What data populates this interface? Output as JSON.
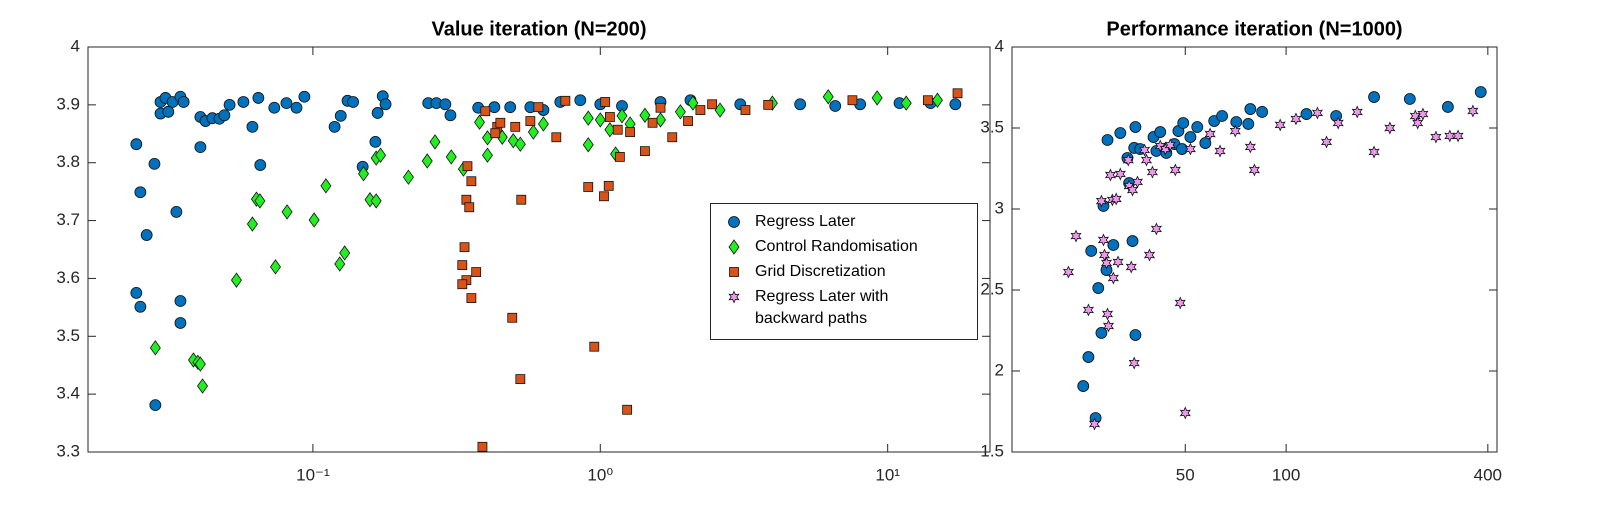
{
  "chart_data": [
    {
      "type": "scatter",
      "title": "Value iteration (N=200)",
      "log_x": true,
      "grid": false,
      "legend": "east",
      "xlim": [
        0.0165,
        22.7
      ],
      "xticks": [
        {
          "value": 0.1,
          "label": "10⁻¹"
        },
        {
          "value": 1,
          "label": "10⁰"
        },
        {
          "value": 10,
          "label": "10¹"
        }
      ],
      "ylim": [
        3.3,
        4
      ],
      "yticks": [
        3.3,
        3.4,
        3.5,
        3.6,
        3.7,
        3.8,
        3.9,
        4
      ],
      "series": [
        {
          "name": "Regress Later",
          "color": "#0072bd",
          "marker": "circle",
          "x": [
            0.0243,
            0.0251,
            0.0264,
            0.0243,
            0.0251,
            0.0281,
            0.0283,
            0.0295,
            0.0295,
            0.0307,
            0.0314,
            0.0325,
            0.0335,
            0.0346,
            0.0346,
            0.0346,
            0.0355,
            0.0406,
            0.0406,
            0.0423,
            0.0447,
            0.0473,
            0.0492,
            0.0513,
            0.0573,
            0.0616,
            0.0646,
            0.0656,
            0.0734,
            0.0809,
            0.0877,
            0.0934,
            0.119,
            0.125,
            0.132,
            0.138,
            0.149,
            0.165,
            0.168,
            0.175,
            0.179,
            0.252,
            0.269,
            0.289,
            0.301,
            0.376,
            0.428,
            0.486,
            0.571,
            0.634,
            0.726,
            0.852,
            1.0,
            1.19,
            1.62,
            2.06,
            3.07,
            4.96,
            6.57,
            8.02,
            11.0,
            14.1,
            17.2
          ],
          "values": [
            3.832,
            3.749,
            3.675,
            3.575,
            3.551,
            3.798,
            3.381,
            3.905,
            3.885,
            3.912,
            3.888,
            3.905,
            3.715,
            3.561,
            3.523,
            3.914,
            3.905,
            3.827,
            3.879,
            3.872,
            3.877,
            3.876,
            3.882,
            3.9,
            3.905,
            3.862,
            3.912,
            3.796,
            3.895,
            3.903,
            3.895,
            3.914,
            3.862,
            3.881,
            3.907,
            3.905,
            3.793,
            3.836,
            3.886,
            3.915,
            3.901,
            3.903,
            3.903,
            3.901,
            3.882,
            3.895,
            3.896,
            3.896,
            3.896,
            3.891,
            3.905,
            3.908,
            3.901,
            3.898,
            3.905,
            3.908,
            3.901,
            3.901,
            3.898,
            3.901,
            3.903,
            3.903,
            3.901
          ]
        },
        {
          "name": "Control Randomisation",
          "color": "#22ee22",
          "marker": "diamond",
          "x": [
            0.0283,
            0.0384,
            0.0398,
            0.0406,
            0.0413,
            0.0542,
            0.0616,
            0.0636,
            0.0654,
            0.0741,
            0.0813,
            0.101,
            0.111,
            0.124,
            0.129,
            0.15,
            0.158,
            0.166,
            0.172,
            0.166,
            0.215,
            0.25,
            0.266,
            0.303,
            0.334,
            0.38,
            0.405,
            0.405,
            0.456,
            0.498,
            0.527,
            0.585,
            0.634,
            0.908,
            0.908,
            1.0,
            1.08,
            1.13,
            1.19,
            1.27,
            1.43,
            1.62,
            1.9,
            2.1,
            2.61,
            3.97,
            6.21,
            9.19,
            11.6,
            14.9
          ],
          "values": [
            3.48,
            3.459,
            3.455,
            3.452,
            3.414,
            3.597,
            3.694,
            3.737,
            3.734,
            3.62,
            3.715,
            3.701,
            3.76,
            3.625,
            3.644,
            3.781,
            3.736,
            3.808,
            3.813,
            3.734,
            3.775,
            3.803,
            3.836,
            3.81,
            3.789,
            3.87,
            3.813,
            3.843,
            3.844,
            3.838,
            3.832,
            3.853,
            3.867,
            3.877,
            3.831,
            3.874,
            3.857,
            3.815,
            3.881,
            3.867,
            3.882,
            3.874,
            3.888,
            3.903,
            3.891,
            3.903,
            3.914,
            3.912,
            3.903,
            3.908
          ]
        },
        {
          "name": "Grid Discretization",
          "color": "#d95319",
          "marker": "square",
          "x": [
            0.389,
            0.337,
            0.331,
            0.342,
            0.356,
            0.37,
            0.331,
            0.342,
            0.35,
            0.356,
            0.345,
            0.398,
            0.438,
            0.431,
            0.449,
            0.494,
            0.527,
            0.531,
            0.506,
            0.571,
            0.609,
            0.703,
            0.756,
            0.908,
            0.953,
            1.03,
            1.07,
            1.04,
            1.08,
            1.17,
            1.24,
            1.15,
            1.27,
            1.43,
            1.52,
            1.62,
            1.78,
            2.02,
            2.23,
            2.45,
            3.2,
            3.84,
            7.54,
            13.8,
            17.5
          ],
          "values": [
            3.309,
            3.654,
            3.623,
            3.597,
            3.566,
            3.611,
            3.59,
            3.736,
            3.723,
            3.768,
            3.794,
            3.889,
            3.862,
            3.851,
            3.869,
            3.532,
            3.426,
            3.736,
            3.862,
            3.872,
            3.896,
            3.844,
            3.907,
            3.758,
            3.482,
            3.742,
            3.76,
            3.905,
            3.879,
            3.81,
            3.373,
            3.857,
            3.853,
            3.82,
            3.869,
            3.895,
            3.844,
            3.872,
            3.891,
            3.901,
            3.891,
            3.9,
            3.908,
            3.908,
            3.92
          ]
        }
      ]
    },
    {
      "type": "scatter",
      "title": "Performance iteration (N=1000)",
      "log_x": true,
      "grid": false,
      "xlim": [
        15.2,
        426
      ],
      "xticks": [
        50,
        100,
        400
      ],
      "ylim": [
        1.5,
        4
      ],
      "yticks": [
        1.5,
        2,
        2.5,
        3,
        3.5,
        4
      ],
      "series": [
        {
          "name": "Regress Later",
          "color": "#0072bd",
          "marker": "circle",
          "x": [
            27.0,
            24.8,
            25.7,
            28.1,
            27.5,
            29.1,
            26.2,
            30.5,
            28.5,
            34.8,
            35.5,
            34.0,
            29.3,
            32.0,
            33.6,
            35.2,
            36.7,
            35.5,
            40.2,
            41.0,
            42.1,
            43.9,
            46.4,
            47.7,
            49.3,
            48.9,
            51.8,
            54.3,
            61.0,
            64.4,
            57.4,
            71.0,
            78.2,
            84.8,
            77.1,
            115,
            141,
            183,
            234,
            304,
            381
          ],
          "values": [
            1.71,
            1.907,
            2.086,
            2.235,
            2.512,
            2.623,
            2.741,
            2.778,
            3.019,
            2.802,
            2.222,
            3.16,
            3.426,
            3.469,
            3.315,
            3.377,
            3.37,
            3.506,
            3.444,
            3.358,
            3.475,
            3.346,
            3.401,
            3.481,
            3.531,
            3.37,
            3.444,
            3.506,
            3.543,
            3.574,
            3.407,
            3.537,
            3.617,
            3.599,
            3.525,
            3.586,
            3.574,
            3.691,
            3.679,
            3.63,
            3.722
          ]
        },
        {
          "name": "Regress Later with backward paths",
          "color": "#ee99ee",
          "marker": "hexagram",
          "x": [
            22.4,
            23.6,
            25.7,
            26.8,
            28.1,
            28.5,
            28.7,
            29.1,
            29.3,
            29.5,
            29.9,
            30.3,
            31.1,
            30.5,
            31.5,
            32.0,
            33.8,
            34.0,
            34.5,
            34.8,
            35.2,
            36.0,
            37.8,
            38.3,
            39.1,
            39.9,
            41.0,
            42.1,
            43.6,
            45.1,
            46.7,
            48.3,
            50.0,
            51.8,
            59.3,
            63.5,
            70.5,
            78.2,
            80.4,
            96.0,
            107,
            124,
            132,
            143,
            163,
            183,
            204,
            243,
            247,
            256,
            280,
            308,
            326,
            361
          ],
          "values": [
            2.611,
            2.833,
            2.377,
            1.673,
            3.049,
            2.809,
            2.716,
            2.667,
            2.352,
            2.278,
            3.21,
            3.056,
            3.062,
            2.574,
            2.673,
            3.216,
            3.302,
            3.142,
            2.642,
            3.117,
            2.049,
            3.167,
            3.364,
            3.302,
            2.716,
            3.228,
            2.877,
            3.389,
            3.37,
            3.395,
            3.241,
            2.42,
            1.741,
            3.37,
            3.463,
            3.358,
            3.481,
            3.383,
            3.241,
            3.519,
            3.556,
            3.593,
            3.414,
            3.531,
            3.599,
            3.352,
            3.5,
            3.574,
            3.531,
            3.586,
            3.444,
            3.451,
            3.451,
            3.605
          ]
        }
      ]
    }
  ]
}
